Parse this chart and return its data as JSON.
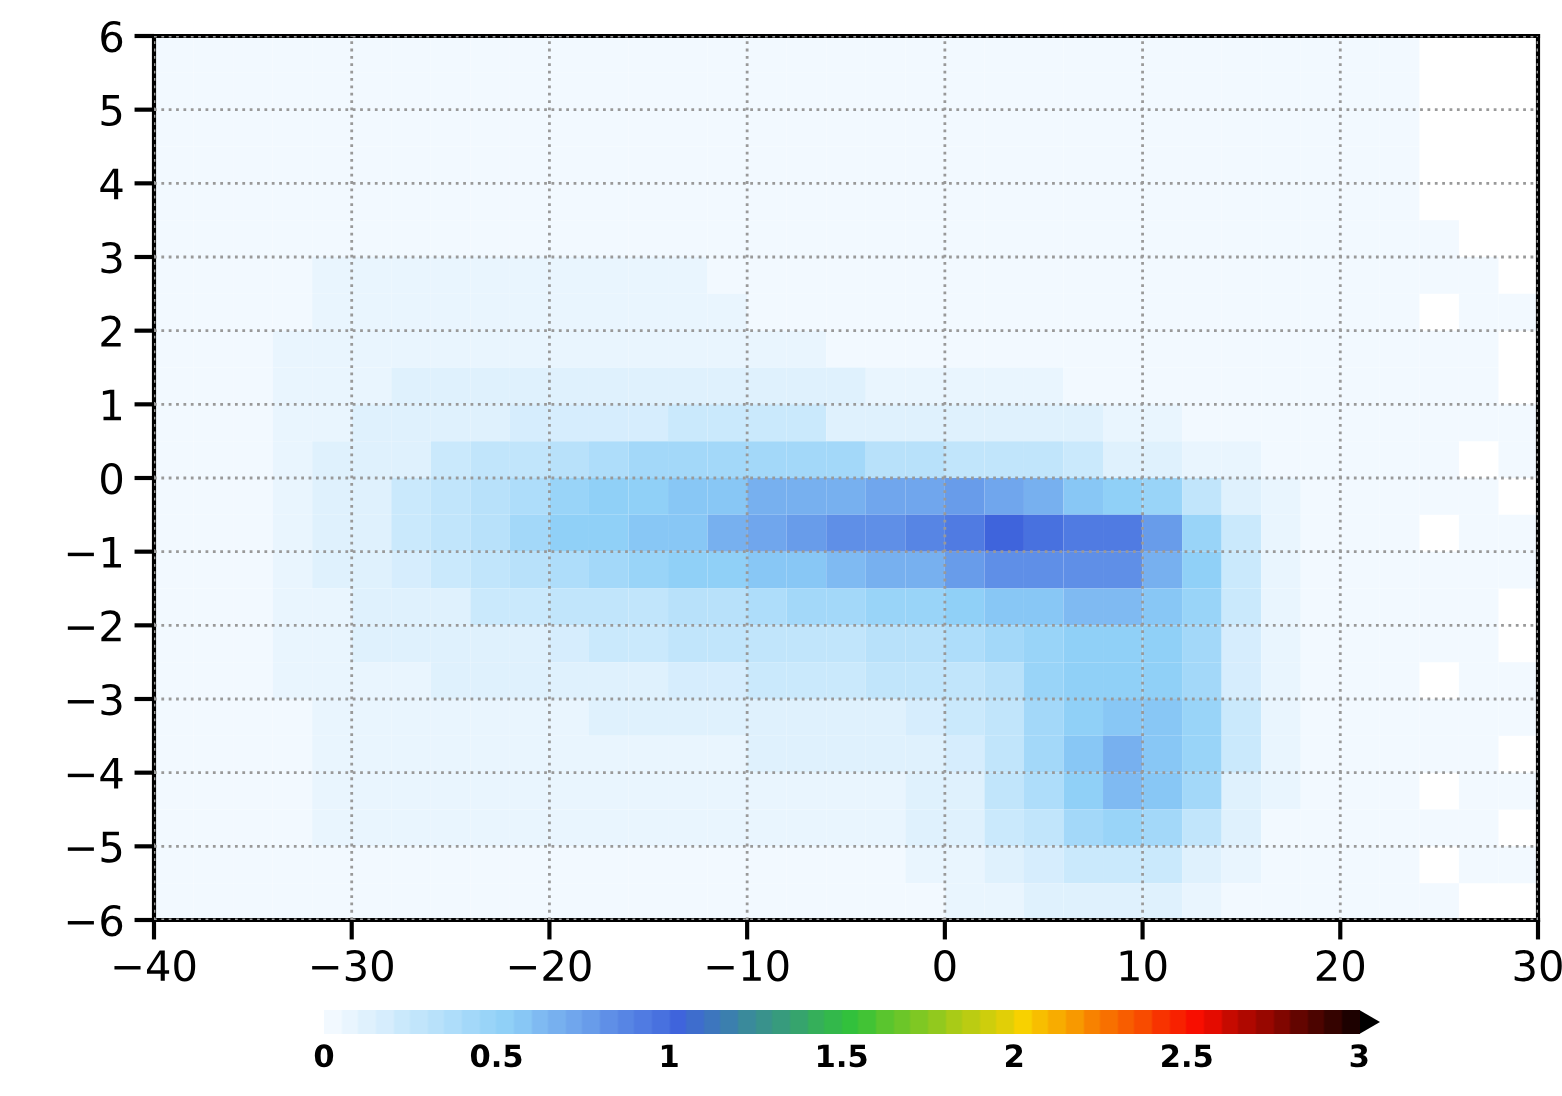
{
  "chart_data": {
    "type": "heatmap",
    "x": [
      -39,
      -37,
      -35,
      -33,
      -31,
      -29,
      -27,
      -25,
      -23,
      -21,
      -19,
      -17,
      -15,
      -13,
      -11,
      -9,
      -7,
      -5,
      -3,
      -1,
      1,
      3,
      5,
      7,
      9,
      11,
      13,
      15,
      17,
      19,
      21,
      23,
      25,
      27,
      29
    ],
    "y": [
      5.75,
      5.25,
      4.75,
      4.25,
      3.75,
      3.25,
      2.75,
      2.25,
      1.75,
      1.25,
      0.75,
      0.25,
      -0.25,
      -0.75,
      -1.25,
      -1.75,
      -2.25,
      -2.75,
      -3.25,
      -3.75,
      -4.25,
      -4.75,
      -5.25,
      -5.75
    ],
    "cells": [
      [
        0.03,
        0.03,
        0.03,
        0.03,
        0.03,
        0.03,
        0.03,
        0.03,
        0.03,
        0.03,
        0.03,
        0.03,
        0.03,
        0.03,
        0.03,
        0.03,
        0.03,
        0.03,
        0.03,
        0.03,
        0.03,
        0.03,
        0.03,
        0.03,
        0.03,
        0.03,
        0.03,
        0.03,
        0.03,
        0.03,
        0.03,
        0.03,
        null,
        null,
        null
      ],
      [
        0.03,
        0.03,
        0.03,
        0.03,
        0.03,
        0.03,
        0.03,
        0.03,
        0.03,
        0.03,
        0.03,
        0.03,
        0.03,
        0.03,
        0.03,
        0.03,
        0.03,
        0.03,
        0.03,
        0.03,
        0.03,
        0.03,
        0.03,
        0.03,
        0.03,
        0.03,
        0.03,
        0.03,
        0.03,
        0.03,
        0.03,
        0.03,
        null,
        null,
        null
      ],
      [
        0.03,
        0.03,
        0.03,
        0.03,
        0.03,
        0.03,
        0.03,
        0.03,
        0.03,
        0.03,
        0.03,
        0.03,
        0.03,
        0.03,
        0.03,
        0.03,
        0.03,
        0.03,
        0.03,
        0.03,
        0.03,
        0.03,
        0.03,
        0.03,
        0.03,
        0.03,
        0.03,
        0.03,
        0.03,
        0.03,
        0.03,
        0.03,
        null,
        null,
        null
      ],
      [
        0.03,
        0.03,
        0.03,
        0.03,
        0.03,
        0.03,
        0.03,
        0.03,
        0.03,
        0.03,
        0.03,
        0.03,
        0.03,
        0.03,
        0.03,
        0.03,
        0.03,
        0.03,
        0.03,
        0.03,
        0.03,
        0.03,
        0.03,
        0.03,
        0.03,
        0.03,
        0.03,
        0.03,
        0.03,
        0.03,
        0.03,
        0.03,
        null,
        null,
        null
      ],
      [
        0.03,
        0.03,
        0.03,
        0.03,
        0.03,
        0.03,
        0.03,
        0.03,
        0.03,
        0.03,
        0.03,
        0.03,
        0.03,
        0.03,
        0.03,
        0.03,
        0.03,
        0.03,
        0.03,
        0.03,
        0.03,
        0.03,
        0.03,
        0.03,
        0.03,
        0.03,
        0.03,
        0.03,
        0.03,
        0.03,
        0.03,
        0.03,
        null,
        null,
        null
      ],
      [
        0.03,
        0.03,
        0.03,
        0.03,
        0.03,
        0.03,
        0.03,
        0.03,
        0.03,
        0.03,
        0.03,
        0.03,
        0.03,
        0.03,
        0.03,
        0.03,
        0.03,
        0.03,
        0.03,
        0.03,
        0.03,
        0.03,
        0.03,
        0.03,
        0.03,
        0.03,
        0.03,
        0.03,
        0.03,
        0.03,
        0.03,
        0.03,
        0.03,
        null,
        null
      ],
      [
        0.03,
        0.03,
        0.03,
        0.03,
        0.06,
        0.06,
        0.06,
        0.06,
        0.06,
        0.06,
        0.06,
        0.06,
        0.06,
        0.06,
        0.03,
        0.03,
        0.03,
        0.03,
        0.03,
        0.03,
        0.03,
        0.03,
        0.03,
        0.03,
        0.03,
        0.03,
        0.03,
        0.03,
        0.03,
        0.03,
        0.03,
        0.03,
        0.03,
        0.03,
        null
      ],
      [
        0.03,
        0.03,
        0.03,
        0.03,
        0.06,
        0.06,
        0.06,
        0.06,
        0.06,
        0.06,
        0.06,
        0.06,
        0.06,
        0.06,
        0.06,
        0.03,
        0.03,
        0.03,
        0.03,
        0.03,
        0.03,
        0.03,
        0.03,
        0.03,
        0.03,
        0.03,
        0.03,
        0.03,
        0.03,
        0.03,
        0.03,
        0.03,
        null,
        0.03,
        0.03
      ],
      [
        0.03,
        0.03,
        0.03,
        0.05,
        0.08,
        0.08,
        0.08,
        0.08,
        0.08,
        0.08,
        0.06,
        0.06,
        0.06,
        0.06,
        0.06,
        0.06,
        0.06,
        0.03,
        0.03,
        0.03,
        0.03,
        0.03,
        0.03,
        0.03,
        0.03,
        0.03,
        0.03,
        0.03,
        0.03,
        0.03,
        0.03,
        0.03,
        0.03,
        0.03,
        null
      ],
      [
        0.03,
        0.03,
        0.03,
        0.05,
        0.08,
        0.08,
        0.12,
        0.12,
        0.12,
        0.1,
        0.1,
        0.1,
        0.1,
        0.1,
        0.1,
        0.1,
        0.1,
        0.1,
        0.06,
        0.06,
        0.06,
        0.06,
        0.06,
        0.03,
        0.03,
        0.03,
        0.03,
        0.03,
        0.03,
        0.03,
        0.03,
        0.03,
        0.03,
        0.03,
        null
      ],
      [
        0.03,
        0.03,
        0.03,
        0.05,
        0.08,
        0.1,
        0.12,
        0.15,
        0.15,
        0.18,
        0.18,
        0.18,
        0.18,
        0.2,
        0.2,
        0.2,
        0.2,
        0.15,
        0.15,
        0.15,
        0.1,
        0.1,
        0.1,
        0.1,
        0.06,
        0.06,
        0.03,
        0.03,
        0.03,
        0.03,
        0.03,
        0.03,
        0.03,
        0.03,
        0.03
      ],
      [
        0.03,
        0.03,
        0.03,
        0.05,
        0.1,
        0.12,
        0.15,
        0.2,
        0.25,
        0.3,
        0.35,
        0.38,
        0.4,
        0.4,
        0.4,
        0.42,
        0.42,
        0.4,
        0.35,
        0.35,
        0.3,
        0.28,
        0.25,
        0.2,
        0.15,
        0.12,
        0.08,
        0.05,
        0.03,
        0.03,
        0.03,
        0.03,
        0.03,
        null,
        0.03
      ],
      [
        0.03,
        0.03,
        0.03,
        0.06,
        0.12,
        0.15,
        0.2,
        0.25,
        0.32,
        0.38,
        0.45,
        0.5,
        0.52,
        0.55,
        0.6,
        0.65,
        0.68,
        0.7,
        0.72,
        0.72,
        0.75,
        0.72,
        0.65,
        0.6,
        0.5,
        0.45,
        0.25,
        0.12,
        0.05,
        0.03,
        0.03,
        0.03,
        0.03,
        0.03,
        null
      ],
      [
        0.03,
        0.03,
        0.03,
        0.06,
        0.12,
        0.15,
        0.2,
        0.28,
        0.35,
        0.42,
        0.5,
        0.52,
        0.55,
        0.6,
        0.65,
        0.72,
        0.78,
        0.8,
        0.85,
        0.88,
        0.95,
        1.0,
        0.98,
        0.95,
        0.9,
        0.75,
        0.48,
        0.2,
        0.06,
        0.03,
        0.03,
        0.03,
        null,
        0.03,
        0.03
      ],
      [
        0.03,
        0.03,
        0.03,
        0.06,
        0.1,
        0.12,
        0.18,
        0.22,
        0.28,
        0.32,
        0.38,
        0.42,
        0.45,
        0.5,
        0.52,
        0.55,
        0.6,
        0.62,
        0.65,
        0.7,
        0.75,
        0.8,
        0.85,
        0.85,
        0.8,
        0.7,
        0.5,
        0.2,
        0.06,
        0.03,
        0.03,
        0.03,
        0.03,
        0.03,
        0.03
      ],
      [
        0.03,
        0.03,
        0.03,
        0.05,
        0.08,
        0.1,
        0.12,
        0.15,
        0.2,
        0.22,
        0.25,
        0.28,
        0.3,
        0.32,
        0.35,
        0.38,
        0.4,
        0.42,
        0.45,
        0.48,
        0.5,
        0.55,
        0.6,
        0.62,
        0.62,
        0.6,
        0.45,
        0.2,
        0.06,
        0.03,
        0.03,
        0.03,
        0.03,
        0.03,
        null
      ],
      [
        0.03,
        0.03,
        0.03,
        0.05,
        0.08,
        0.1,
        0.1,
        0.12,
        0.15,
        0.15,
        0.18,
        0.2,
        0.22,
        0.25,
        0.25,
        0.28,
        0.3,
        0.3,
        0.32,
        0.35,
        0.38,
        0.4,
        0.45,
        0.5,
        0.5,
        0.5,
        0.4,
        0.18,
        0.06,
        0.03,
        0.03,
        0.03,
        0.03,
        0.03,
        null
      ],
      [
        0.03,
        0.03,
        0.03,
        0.05,
        0.08,
        0.08,
        0.08,
        0.1,
        0.1,
        0.12,
        0.12,
        0.15,
        0.15,
        0.18,
        0.18,
        0.2,
        0.22,
        0.22,
        0.25,
        0.28,
        0.3,
        0.35,
        0.45,
        0.5,
        0.5,
        0.5,
        0.42,
        0.18,
        0.08,
        0.03,
        0.03,
        0.03,
        null,
        0.03,
        0.03
      ],
      [
        0.03,
        0.03,
        0.03,
        0.03,
        0.08,
        0.08,
        0.08,
        0.08,
        0.08,
        0.08,
        0.08,
        0.1,
        0.1,
        0.1,
        0.1,
        0.12,
        0.12,
        0.12,
        0.15,
        0.18,
        0.2,
        0.3,
        0.4,
        0.5,
        0.55,
        0.55,
        0.45,
        0.2,
        0.08,
        0.03,
        0.03,
        0.03,
        0.03,
        0.03,
        0.03
      ],
      [
        0.03,
        0.03,
        0.03,
        0.03,
        0.08,
        0.08,
        0.08,
        0.08,
        0.08,
        0.08,
        0.08,
        0.08,
        0.08,
        0.08,
        0.08,
        0.1,
        0.1,
        0.1,
        0.12,
        0.15,
        0.18,
        0.28,
        0.4,
        0.55,
        0.65,
        0.6,
        0.45,
        0.2,
        0.08,
        0.03,
        0.03,
        0.03,
        0.03,
        0.03,
        null
      ],
      [
        0.03,
        0.03,
        0.03,
        0.03,
        0.08,
        0.06,
        0.06,
        0.06,
        0.06,
        0.06,
        0.06,
        0.06,
        0.06,
        0.06,
        0.06,
        0.06,
        0.08,
        0.08,
        0.08,
        0.12,
        0.15,
        0.25,
        0.38,
        0.5,
        0.62,
        0.55,
        0.4,
        0.15,
        0.05,
        0.03,
        0.03,
        0.03,
        null,
        0.03,
        0.03
      ],
      [
        0.03,
        0.03,
        0.03,
        0.03,
        0.06,
        0.05,
        0.05,
        0.05,
        0.05,
        0.05,
        0.05,
        0.05,
        0.05,
        0.05,
        0.05,
        0.05,
        0.05,
        0.05,
        0.06,
        0.1,
        0.12,
        0.2,
        0.3,
        0.4,
        0.45,
        0.42,
        0.3,
        0.12,
        0.03,
        0.03,
        0.03,
        0.03,
        0.03,
        0.03,
        null
      ],
      [
        0.03,
        0.03,
        0.03,
        0.03,
        0.03,
        0.03,
        0.03,
        0.03,
        0.03,
        0.03,
        0.03,
        0.03,
        0.03,
        0.03,
        0.03,
        0.03,
        0.03,
        0.03,
        0.03,
        0.06,
        0.08,
        0.12,
        0.18,
        0.22,
        0.22,
        0.2,
        0.15,
        0.08,
        0.03,
        0.03,
        0.03,
        0.03,
        null,
        0.03,
        0.03
      ],
      [
        0.03,
        0.03,
        0.03,
        0.03,
        0.03,
        0.03,
        0.03,
        0.03,
        0.03,
        0.03,
        0.03,
        0.03,
        0.03,
        0.03,
        0.03,
        0.03,
        0.03,
        0.03,
        0.03,
        0.03,
        0.05,
        0.08,
        0.1,
        0.12,
        0.12,
        0.1,
        0.06,
        0.03,
        0.03,
        0.03,
        0.03,
        0.03,
        0.03,
        null,
        null
      ]
    ],
    "xlim": [
      -40,
      30
    ],
    "ylim": [
      -6,
      6
    ],
    "xticks": [
      {
        "value": -40,
        "label": "−40"
      },
      {
        "value": -30,
        "label": "−30"
      },
      {
        "value": -20,
        "label": "−20"
      },
      {
        "value": -10,
        "label": "−10"
      },
      0,
      10,
      20,
      30
    ],
    "yticks": [
      {
        "value": -6,
        "label": "−6"
      },
      {
        "value": -5,
        "label": "−5"
      },
      {
        "value": -4,
        "label": "−4"
      },
      {
        "value": -3,
        "label": "−3"
      },
      {
        "value": -2,
        "label": "−2"
      },
      {
        "value": -1,
        "label": "−1"
      },
      0,
      1,
      2,
      3,
      4,
      5,
      6
    ],
    "grid": true,
    "clim": [
      0,
      3
    ],
    "cticks": [
      0,
      0.5,
      1,
      1.5,
      2,
      2.5,
      3
    ]
  }
}
